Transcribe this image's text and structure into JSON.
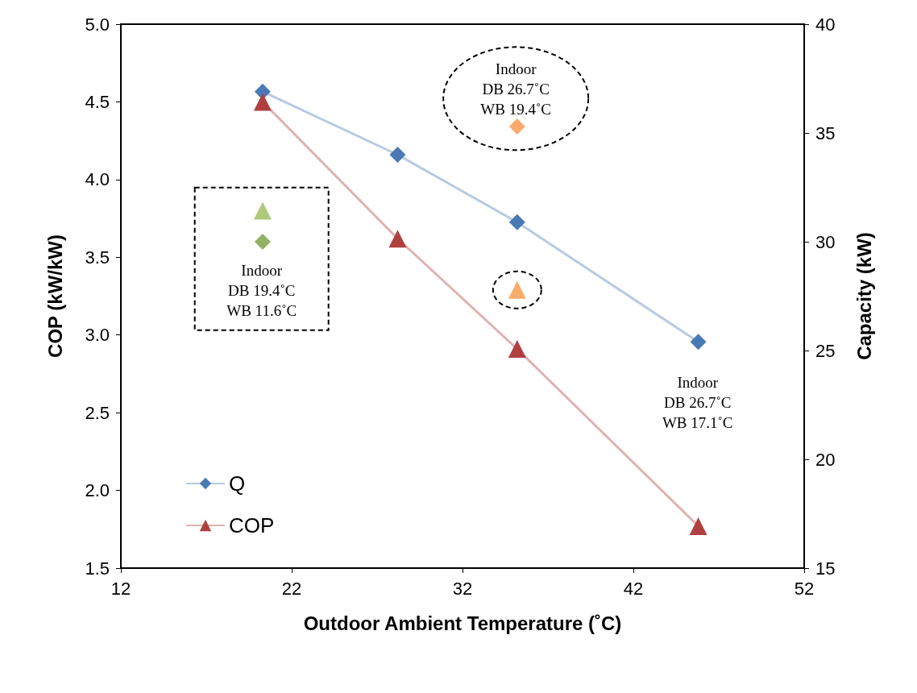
{
  "chart_data": {
    "type": "line",
    "xlabel": "Outdoor Ambient Temperature (˚C)",
    "ylabel": "COP (kW/kW)",
    "y2label": "Capacity (kW)",
    "xlim": [
      12,
      52
    ],
    "xticks": [
      12,
      22,
      32,
      42,
      52
    ],
    "ylim": [
      1.5,
      5.0
    ],
    "yticks": [
      1.5,
      {
        "value": 2,
        "label": "2.0"
      },
      2.5,
      {
        "value": 3,
        "label": "3.0"
      },
      3.5,
      {
        "value": 4,
        "label": "4.0"
      },
      4.5,
      {
        "value": 5,
        "label": "5.0"
      }
    ],
    "y2lim": [
      15,
      40
    ],
    "y2ticks": [
      15,
      20,
      25,
      30,
      35,
      40
    ],
    "grid": false,
    "legend": "bottom left",
    "series": [
      {
        "name": "Q",
        "axis": "y2",
        "marker": "diamond",
        "color": "#4a7ab5",
        "x": [
          20.3,
          28.2,
          35.2,
          45.8
        ],
        "values": [
          36.9,
          34.0,
          30.9,
          25.4
        ]
      },
      {
        "name": "COP",
        "axis": "y",
        "marker": "triangle",
        "color": "#b04040",
        "x": [
          20.3,
          28.2,
          35.2,
          45.8
        ],
        "values": [
          4.5,
          3.62,
          2.91,
          1.77
        ]
      },
      {
        "type": "scatter",
        "axis": "y",
        "marker": "triangle",
        "color": "#9bbb59",
        "x": [
          20.3
        ],
        "values": [
          3.8
        ]
      },
      {
        "type": "scatter",
        "axis": "y2",
        "marker": "diamond",
        "color": "#77a040",
        "x": [
          20.3
        ],
        "values": [
          30.0
        ]
      },
      {
        "type": "scatter",
        "axis": "y2",
        "marker": "diamond",
        "color": "#f79646",
        "x": [
          35.2
        ],
        "values": [
          35.3
        ]
      },
      {
        "type": "scatter",
        "axis": "y",
        "marker": "triangle",
        "color": "#f79646",
        "x": [
          35.2
        ],
        "values": [
          3.29
        ]
      }
    ],
    "annotations": [
      "Indoor\nDB 19.4˚C\nWB 11.6˚C",
      "Indoor\nDB 26.7˚C\nWB 19.4˚C",
      "Indoor\nDB 26.7˚C\nWB 17.1˚C"
    ]
  }
}
